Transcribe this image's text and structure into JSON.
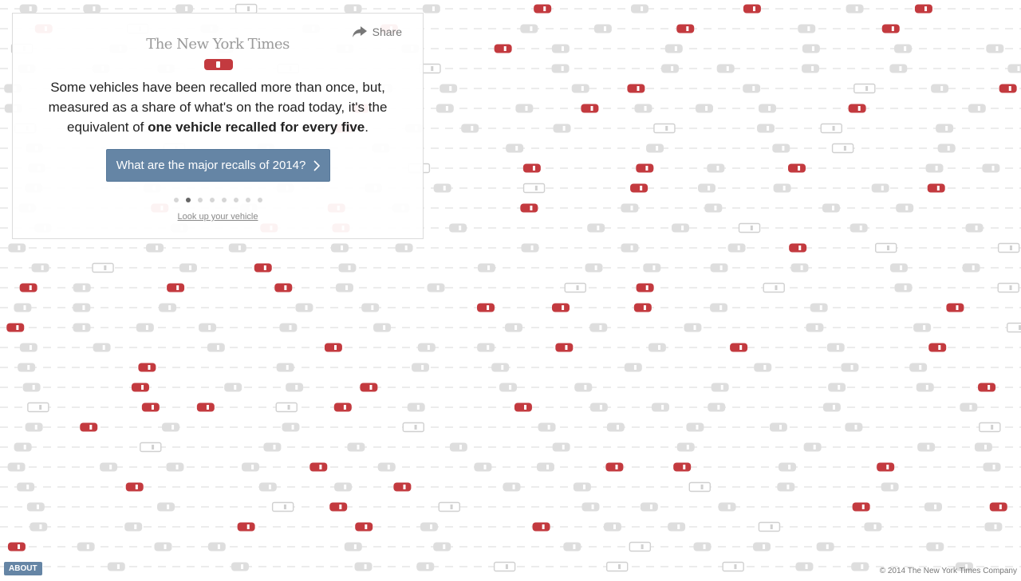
{
  "masthead": "The New York Times",
  "share_label": "Share",
  "message": {
    "intro": "Some vehicles have been recalled more than once, but, measured as a share of what's on the road today, it's the equivalent of ",
    "emphasis": "one vehicle recalled for every five",
    "end": "."
  },
  "cta_label": "What are the major recalls of 2014?",
  "pagination": {
    "total": 8,
    "active": 1
  },
  "lookup_label": "Look up your vehicle",
  "about_label": "ABOUT",
  "copyright": "© 2014 The New York Times Company",
  "colors": {
    "recalled": "#c33a3f",
    "normal": "#dedede",
    "truck": "#d0d0d0",
    "lane": "#ececec",
    "accent": "#6585a5"
  },
  "icons": [
    "share-arrow-icon",
    "chevron-right-icon",
    "car-icon",
    "truck-icon"
  ]
}
